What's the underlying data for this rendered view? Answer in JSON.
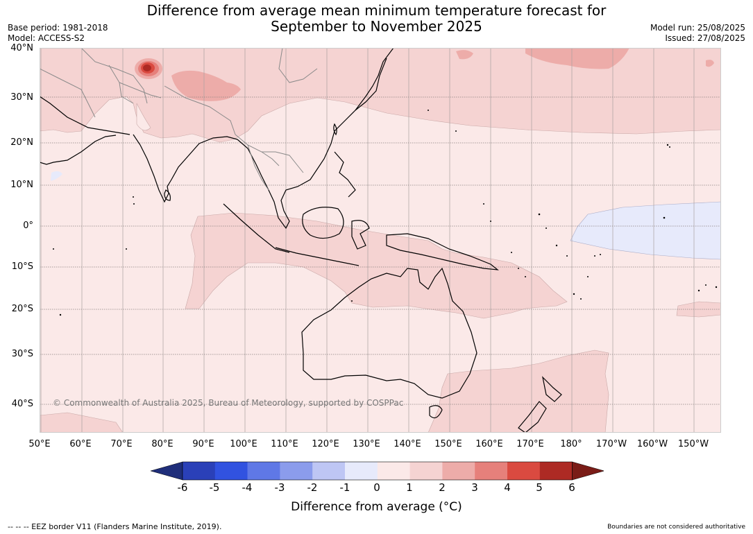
{
  "title_line1": "Difference from average mean minimum temperature forecast for",
  "title_line2": "September to November 2025",
  "base_period": "Base period: 1981-2018",
  "model": "Model: ACCESS-S2",
  "model_run": "Model run: 25/08/2025",
  "issued": "Issued: 27/08/2025",
  "copyright": "© Commonwealth of Australia 2025, Bureau of Meteorology, supported by COSPPac",
  "lat_labels": [
    "40°N",
    "30°N",
    "20°N",
    "10°N",
    "0°",
    "10°S",
    "20°S",
    "30°S",
    "40°S"
  ],
  "lon_labels": [
    "50°E",
    "60°E",
    "70°E",
    "80°E",
    "90°E",
    "100°E",
    "110°E",
    "120°E",
    "130°E",
    "140°E",
    "150°E",
    "160°E",
    "170°E",
    "180°",
    "170°W",
    "160°W",
    "150°W"
  ],
  "colorbar": {
    "title": "Difference from average (°C)",
    "ticks": [
      "-6",
      "-5",
      "-4",
      "-3",
      "-2",
      "-1",
      "0",
      "1",
      "2",
      "3",
      "4",
      "5",
      "6"
    ],
    "colors": [
      "#1f2e7a",
      "#2a40b8",
      "#3152e0",
      "#5f78e6",
      "#8b9cec",
      "#bec6f4",
      "#e7eafb",
      "#fbe9e8",
      "#f5d3d2",
      "#edaca9",
      "#e6807b",
      "#da4a40",
      "#ad2a24",
      "#7a1c17"
    ]
  },
  "footer_left": "-- -- -- EEZ border V11 (Flanders Marine Institute, 2019).",
  "footer_right": "Boundaries are not considered authoritative"
}
